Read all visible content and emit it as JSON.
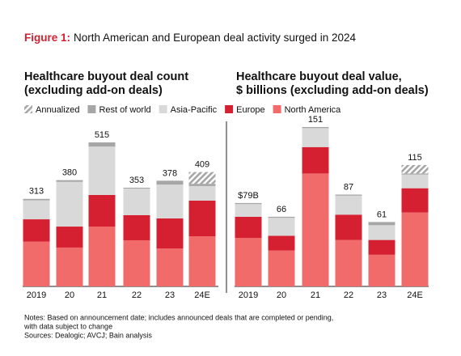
{
  "figure_label": "Figure 1:",
  "title": "North American and European deal activity surged in 2024",
  "chart_data": [
    {
      "type": "stacked-bar",
      "title": [
        "Healthcare buyout deal count",
        "(excluding add-on deals)"
      ],
      "categories": [
        "2019",
        "20",
        "21",
        "22",
        "23",
        "24E"
      ],
      "series": [
        {
          "name": "North America",
          "color": "#f26b6b",
          "values": [
            160,
            139,
            214,
            165,
            136,
            179
          ]
        },
        {
          "name": "Europe",
          "color": "#d42030",
          "values": [
            80,
            75,
            113,
            90,
            107,
            128
          ]
        },
        {
          "name": "Asia-Pacific",
          "color": "#d9d9d9",
          "values": [
            68,
            160,
            173,
            95,
            121,
            52
          ]
        },
        {
          "name": "Rest of world",
          "color": "#a6a6a6",
          "values": [
            5,
            6,
            15,
            3,
            14,
            8
          ]
        },
        {
          "name": "Annualized",
          "color": "#a6a6a6",
          "pattern": "hatch",
          "values": [
            null,
            null,
            null,
            null,
            null,
            42
          ]
        }
      ],
      "totals": {
        "values": [
          313,
          380,
          515,
          353,
          378,
          409
        ]
      }
    },
    {
      "type": "stacked-bar",
      "title": [
        "Healthcare buyout deal value,",
        "$ billions (excluding add-on deals)"
      ],
      "categories": [
        "2019",
        "20",
        "21",
        "22",
        "23",
        "24E"
      ],
      "series": [
        {
          "color": "#f26b6b",
          "values": [
            46,
            34,
            107,
            44,
            30,
            70
          ]
        },
        {
          "color": "#d42030",
          "values": [
            20,
            14,
            25,
            24,
            14,
            23
          ]
        },
        {
          "color": "#d9d9d9",
          "values": [
            12,
            17,
            18,
            18,
            14,
            13
          ]
        },
        {
          "color": "#a6a6a6",
          "values": [
            1,
            1,
            1,
            1,
            3,
            1
          ]
        },
        {
          "color": "#a6a6a6",
          "pattern": "hatch",
          "values": [
            null,
            null,
            null,
            null,
            null,
            8
          ]
        }
      ],
      "totals": {
        "values": [
          79,
          66,
          151,
          87,
          61,
          115
        ],
        "value_labels": [
          "$79B",
          "66",
          "151",
          "87",
          "61",
          "115"
        ]
      }
    }
  ],
  "notes": [
    "Notes: Based on announcement date; includes announced deals that are completed or pending,",
    "with data subject to change",
    "Sources: Dealogic; AVCJ; Bain analysis"
  ]
}
